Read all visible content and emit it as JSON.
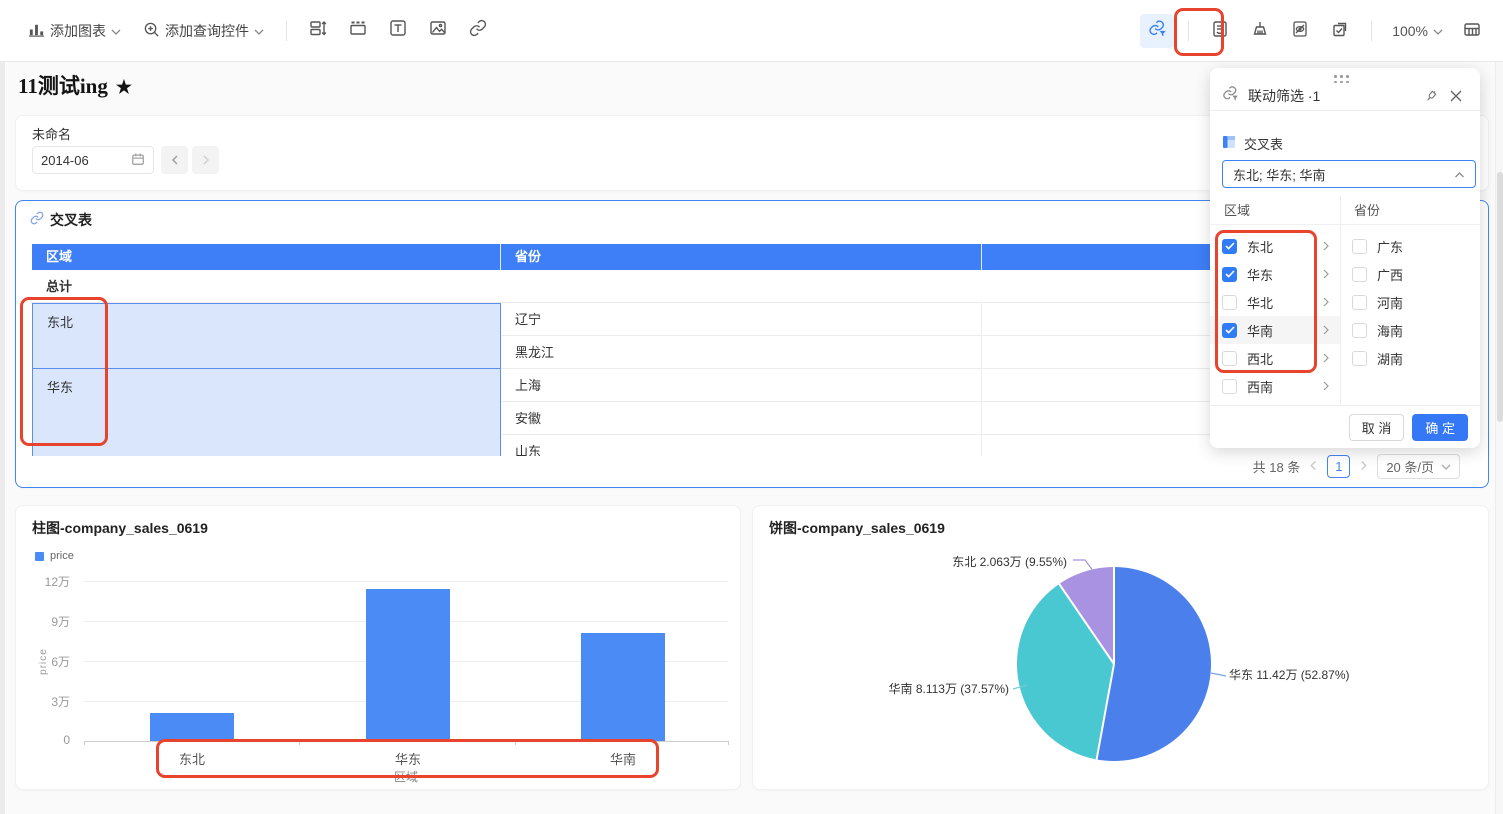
{
  "toolbar": {
    "add_chart_label": "添加图表",
    "add_query_label": "添加查询控件",
    "zoom_level": "100%"
  },
  "page": {
    "title": "11测试ing",
    "star": "★"
  },
  "filter_control": {
    "name": "未命名",
    "date_value": "2014-06"
  },
  "cross_table": {
    "title": "交叉表",
    "col_region": "区域",
    "col_province": "省份",
    "total_row": "总计",
    "groups": [
      {
        "region": "东北",
        "provinces": [
          "辽宁",
          "黑龙江"
        ]
      },
      {
        "region": "华东",
        "provinces": [
          "上海",
          "安徽",
          "山东"
        ]
      }
    ],
    "pagination": {
      "total": "共 18 条",
      "current_page": "1",
      "page_size": "20 条/页"
    }
  },
  "popup": {
    "title": "联动筛选 ·1",
    "dataset_name": "交叉表",
    "selected_values": "东北; 华东; 华南",
    "region_header": "区域",
    "province_header": "省份",
    "regions": [
      {
        "label": "东北",
        "checked": true
      },
      {
        "label": "华东",
        "checked": true
      },
      {
        "label": "华北",
        "checked": false
      },
      {
        "label": "华南",
        "checked": true
      },
      {
        "label": "西北",
        "checked": false
      },
      {
        "label": "西南",
        "checked": false
      }
    ],
    "provinces": [
      {
        "label": "广东",
        "checked": false
      },
      {
        "label": "广西",
        "checked": false
      },
      {
        "label": "河南",
        "checked": false
      },
      {
        "label": "海南",
        "checked": false
      },
      {
        "label": "湖南",
        "checked": false
      }
    ],
    "cancel_label": "取 消",
    "confirm_label": "确 定"
  },
  "chart_data": [
    {
      "type": "bar",
      "title": "柱图-company_sales_0619",
      "legend": [
        "price"
      ],
      "xlabel": "区域",
      "ylabel": "price",
      "categories": [
        "东北",
        "华东",
        "华南"
      ],
      "values": [
        2.063,
        11.42,
        8.113
      ],
      "unit": "万",
      "yticks": [
        "0",
        "3万",
        "6万",
        "9万",
        "12万"
      ],
      "ylim": [
        0,
        12
      ],
      "grid": true,
      "legend_position": "top-left",
      "bar_color": "#4b8bf5"
    },
    {
      "type": "pie",
      "title": "饼图-company_sales_0619",
      "start_angle_deg": 0,
      "direction": "clockwise",
      "slices": [
        {
          "label": "华东",
          "value": 11.42,
          "unit": "万",
          "pct": 52.87,
          "display": "华东 11.42万 (52.87%)",
          "color": "#4b80ec"
        },
        {
          "label": "华南",
          "value": 8.113,
          "unit": "万",
          "pct": 37.57,
          "display": "华南 8.113万 (37.57%)",
          "color": "#49c8d1"
        },
        {
          "label": "东北",
          "value": 2.063,
          "unit": "万",
          "pct": 9.55,
          "display": "东北 2.063万 (9.55%)",
          "color": "#a992e2"
        }
      ]
    }
  ],
  "colors": {
    "accent_blue": "#3e7ef7",
    "annotation_red": "#e8432d",
    "selected_cell_bg": "#d9e6fb"
  }
}
